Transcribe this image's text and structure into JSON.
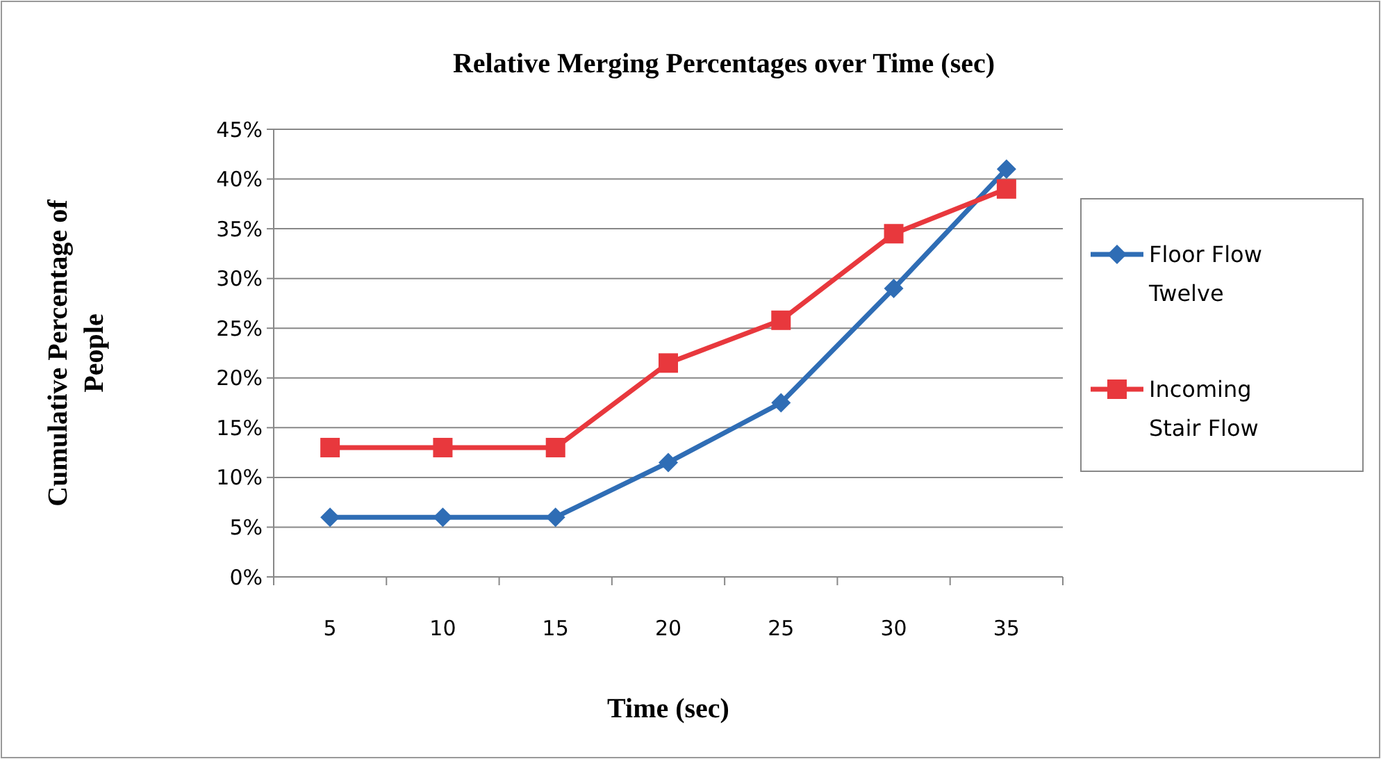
{
  "chart_data": {
    "type": "line",
    "title": "Relative Merging Percentages over Time (sec)",
    "xlabel": "Time (sec)",
    "ylabel": "Cumulative Percentage of People",
    "categories": [
      "5",
      "10",
      "15",
      "20",
      "25",
      "30",
      "35"
    ],
    "series": [
      {
        "name": "Floor Flow Twelve",
        "color": "#2f6db5",
        "marker": "diamond",
        "values": [
          6,
          6,
          6,
          11.5,
          17.5,
          29,
          41
        ]
      },
      {
        "name": "Incoming Stair Flow",
        "color": "#e8383d",
        "marker": "square",
        "values": [
          13,
          13,
          13,
          21.5,
          25.8,
          34.5,
          39
        ]
      }
    ],
    "ylim": [
      0,
      45
    ],
    "yticks": [
      {
        "value": 0,
        "label": "0%"
      },
      {
        "value": 5,
        "label": "5%"
      },
      {
        "value": 10,
        "label": "10%"
      },
      {
        "value": 15,
        "label": "15%"
      },
      {
        "value": 20,
        "label": "20%"
      },
      {
        "value": 25,
        "label": "25%"
      },
      {
        "value": 30,
        "label": "30%"
      },
      {
        "value": 35,
        "label": "35%"
      },
      {
        "value": 40,
        "label": "40%"
      },
      {
        "value": 45,
        "label": "45%"
      }
    ],
    "grid": "y",
    "legend": "right",
    "line_style": "solid"
  }
}
